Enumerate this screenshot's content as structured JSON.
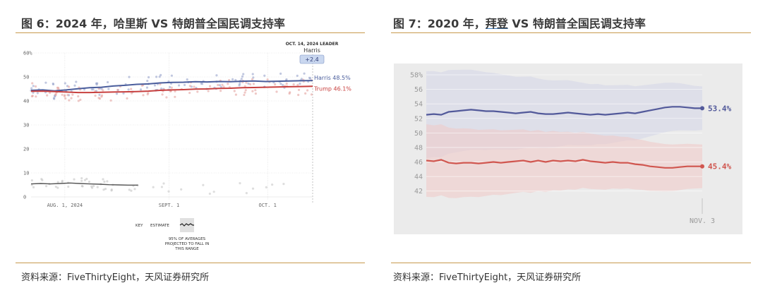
{
  "left_panel": {
    "title": "图 6：2024 年，哈里斯 VS 特朗普全国民调支持率",
    "source": "资料来源：FiveThirtyEight，天风证券研究所"
  },
  "right_panel": {
    "title_prefix": "图 7：2020 年，",
    "title_underlined": "拜登",
    "title_suffix": " VS 特朗普全国民调支持率",
    "source": "资料来源：FiveThirtyEight，天风证券研究所"
  },
  "colors": {
    "accent_rule": "#c89a4e",
    "harris": "#4a5d9c",
    "trump": "#c8403f",
    "biden": "#52599a",
    "trump_2020": "#d0564f",
    "other": "#555555"
  },
  "chart_data": [
    {
      "type": "line",
      "y_ticks": [
        "60%",
        "50",
        "40",
        "30",
        "20",
        "10",
        "0"
      ],
      "ylim": [
        0,
        60
      ],
      "x_ticks": [
        "AUG. 1, 2024",
        "SEPT. 1",
        "OCT. 1"
      ],
      "grid": true,
      "leader_box": {
        "date": "OCT. 14, 2024 LEADER",
        "name": "Harris",
        "margin": "+2.4"
      },
      "key": {
        "label": "KEY",
        "estimate": "ESTIMATE",
        "range_note": "95% OF AVERAGES PROJECTED TO FALL IN THIS RANGE"
      },
      "series": [
        {
          "name": "Harris",
          "end_label": "Harris 48.5%",
          "color": "#4a5d9c",
          "values": [
            44.4,
            44.6,
            44.2,
            44.6,
            45.1,
            45.5,
            45.7,
            46.2,
            46.5,
            46.9,
            47.1,
            47.5,
            47.7,
            47.8,
            48.0,
            47.9,
            48.1,
            48.0,
            48.2,
            48.3,
            48.1,
            48.2,
            48.3,
            48.4,
            48.5
          ]
        },
        {
          "name": "Trump",
          "end_label": "Trump 46.1%",
          "color": "#c8403f",
          "values": [
            44.0,
            44.1,
            43.9,
            43.7,
            43.5,
            43.5,
            43.6,
            43.7,
            43.8,
            43.9,
            44.1,
            44.4,
            44.6,
            44.7,
            44.9,
            45.0,
            45.2,
            45.3,
            45.5,
            45.6,
            45.7,
            45.8,
            45.9,
            46.0,
            46.1
          ]
        },
        {
          "name": "",
          "end_label": "",
          "color": "#555555",
          "values": [
            5.4,
            5.6,
            5.4,
            5.6,
            5.8,
            5.6,
            5.4,
            5.3,
            5.1,
            5.0,
            4.9,
            4.9
          ],
          "x_fraction_end": 0.38
        }
      ]
    },
    {
      "type": "line",
      "y_ticks": [
        "58%",
        "56",
        "54",
        "52",
        "50",
        "48",
        "46",
        "44",
        "42"
      ],
      "ylim": [
        41,
        58
      ],
      "x_ticks": [
        "NOV. 3"
      ],
      "grid": true,
      "series": [
        {
          "name": "Biden",
          "end_label": "53.4%",
          "color": "#52599a",
          "values": [
            52.5,
            52.6,
            52.5,
            52.9,
            53.0,
            53.1,
            53.2,
            53.1,
            53.0,
            53.0,
            52.9,
            52.8,
            52.7,
            52.8,
            52.9,
            52.7,
            52.6,
            52.6,
            52.7,
            52.8,
            52.7,
            52.6,
            52.5,
            52.6,
            52.5,
            52.6,
            52.7,
            52.8,
            52.7,
            52.9,
            53.1,
            53.3,
            53.5,
            53.6,
            53.6,
            53.5,
            53.4,
            53.4
          ]
        },
        {
          "name": "Trump",
          "end_label": "45.4%",
          "color": "#d0564f",
          "values": [
            46.2,
            46.1,
            46.3,
            45.9,
            45.8,
            45.9,
            45.9,
            45.8,
            45.9,
            46.0,
            45.9,
            46.0,
            46.1,
            46.2,
            46.0,
            46.2,
            46.0,
            46.2,
            46.1,
            46.2,
            46.1,
            46.3,
            46.1,
            46.0,
            45.9,
            46.0,
            45.9,
            45.9,
            45.7,
            45.6,
            45.4,
            45.3,
            45.2,
            45.2,
            45.3,
            45.4,
            45.4,
            45.4
          ]
        }
      ]
    }
  ]
}
